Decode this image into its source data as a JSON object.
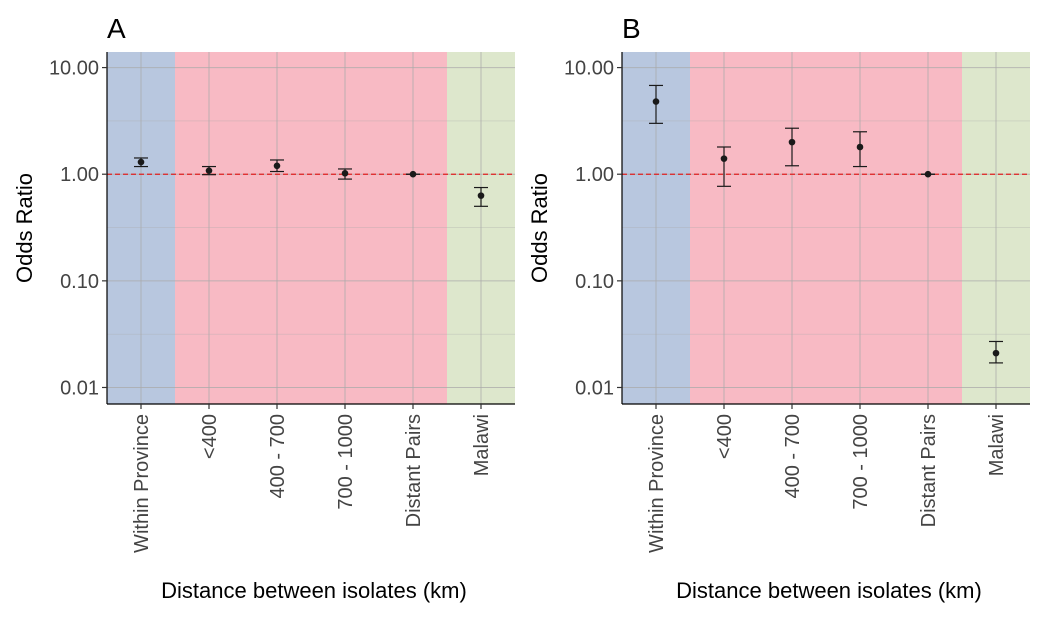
{
  "chart_data": [
    {
      "type": "scatter",
      "panel_label": "A",
      "xlabel": "Distance between isolates (km)",
      "ylabel": "Odds Ratio",
      "yscale": "log10",
      "ylim": [
        0.007,
        14
      ],
      "yticks": [
        "0.01",
        "0.10",
        "1.00",
        "10.00"
      ],
      "categories": [
        "Within Province",
        "<400",
        "400 - 700",
        "700 - 1000",
        "Distant Pairs",
        "Malawi"
      ],
      "values": [
        1.3,
        1.08,
        1.2,
        1.02,
        1.0,
        0.63
      ],
      "ci_low": [
        1.18,
        0.99,
        1.06,
        0.9,
        1.0,
        0.5
      ],
      "ci_high": [
        1.42,
        1.18,
        1.36,
        1.12,
        1.0,
        0.75
      ],
      "reference_line": 1.0,
      "grid": true,
      "background_bands": [
        {
          "from": 0,
          "to": 0,
          "color": "#b8c7df"
        },
        {
          "from": 1,
          "to": 4,
          "color": "#f8bac4"
        },
        {
          "from": 5,
          "to": 5,
          "color": "#dde7cc"
        }
      ],
      "colors": {
        "point": "#1a1a1a",
        "errorbar": "#1a1a1a",
        "reference_line": "#e02020",
        "grid": "#a9a9a9"
      }
    },
    {
      "type": "scatter",
      "panel_label": "B",
      "xlabel": "Distance between isolates (km)",
      "ylabel": "Odds Ratio",
      "yscale": "log10",
      "ylim": [
        0.007,
        14
      ],
      "yticks": [
        "0.01",
        "0.10",
        "1.00",
        "10.00"
      ],
      "categories": [
        "Within Province",
        "<400",
        "400 - 700",
        "700 - 1000",
        "Distant Pairs",
        "Malawi"
      ],
      "values": [
        4.8,
        1.4,
        2.0,
        1.8,
        1.0,
        0.021
      ],
      "ci_low": [
        3.0,
        0.77,
        1.2,
        1.18,
        1.0,
        0.017
      ],
      "ci_high": [
        6.8,
        1.8,
        2.7,
        2.5,
        1.0,
        0.027
      ],
      "reference_line": 1.0,
      "grid": true,
      "background_bands": [
        {
          "from": 0,
          "to": 0,
          "color": "#b8c7df"
        },
        {
          "from": 1,
          "to": 4,
          "color": "#f8bac4"
        },
        {
          "from": 5,
          "to": 5,
          "color": "#dde7cc"
        }
      ],
      "colors": {
        "point": "#1a1a1a",
        "errorbar": "#1a1a1a",
        "reference_line": "#e02020",
        "grid": "#a9a9a9"
      }
    }
  ]
}
